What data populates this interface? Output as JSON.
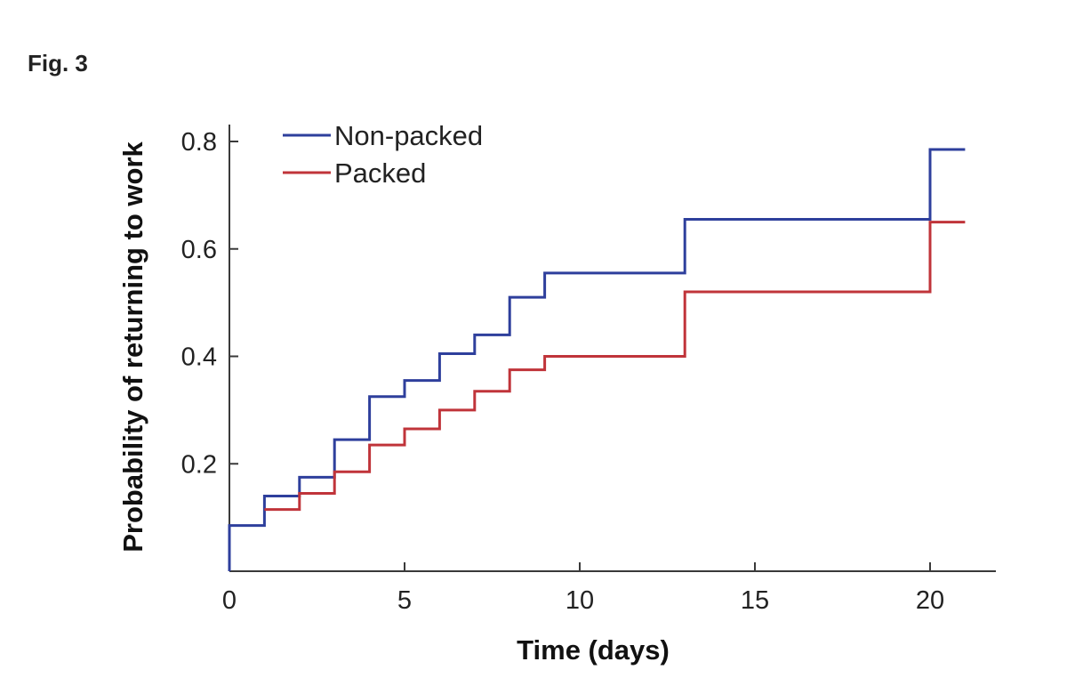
{
  "figure_label": "Fig. 3",
  "chart_data": {
    "type": "line",
    "step": true,
    "xlabel": "Time (days)",
    "ylabel": "Probability of returning to work",
    "xlim": [
      0,
      22
    ],
    "ylim": [
      0,
      0.8
    ],
    "xticks": [
      0,
      5,
      10,
      15,
      20
    ],
    "xtick_labels": [
      "0",
      "5",
      "10",
      "15",
      "20"
    ],
    "yticks": [
      0.2,
      0.4,
      0.6,
      0.8
    ],
    "ytick_labels": [
      "0.2",
      "0.4",
      "0.6",
      "0.8"
    ],
    "grid": false,
    "legend_position": "top-left",
    "series": [
      {
        "name": "Non-packed",
        "color": "#2e3f9c",
        "x": [
          0,
          1,
          2,
          3,
          4,
          5,
          6,
          7,
          8,
          9,
          13,
          20,
          21
        ],
        "y": [
          0.085,
          0.14,
          0.175,
          0.245,
          0.325,
          0.355,
          0.405,
          0.44,
          0.51,
          0.555,
          0.655,
          0.785,
          0.785
        ]
      },
      {
        "name": "Packed",
        "color": "#c0343a",
        "x": [
          1,
          2,
          3,
          4,
          5,
          6,
          7,
          8,
          9,
          13,
          20,
          21
        ],
        "y": [
          0.115,
          0.145,
          0.185,
          0.235,
          0.265,
          0.3,
          0.335,
          0.375,
          0.4,
          0.52,
          0.65,
          0.65
        ]
      }
    ]
  }
}
